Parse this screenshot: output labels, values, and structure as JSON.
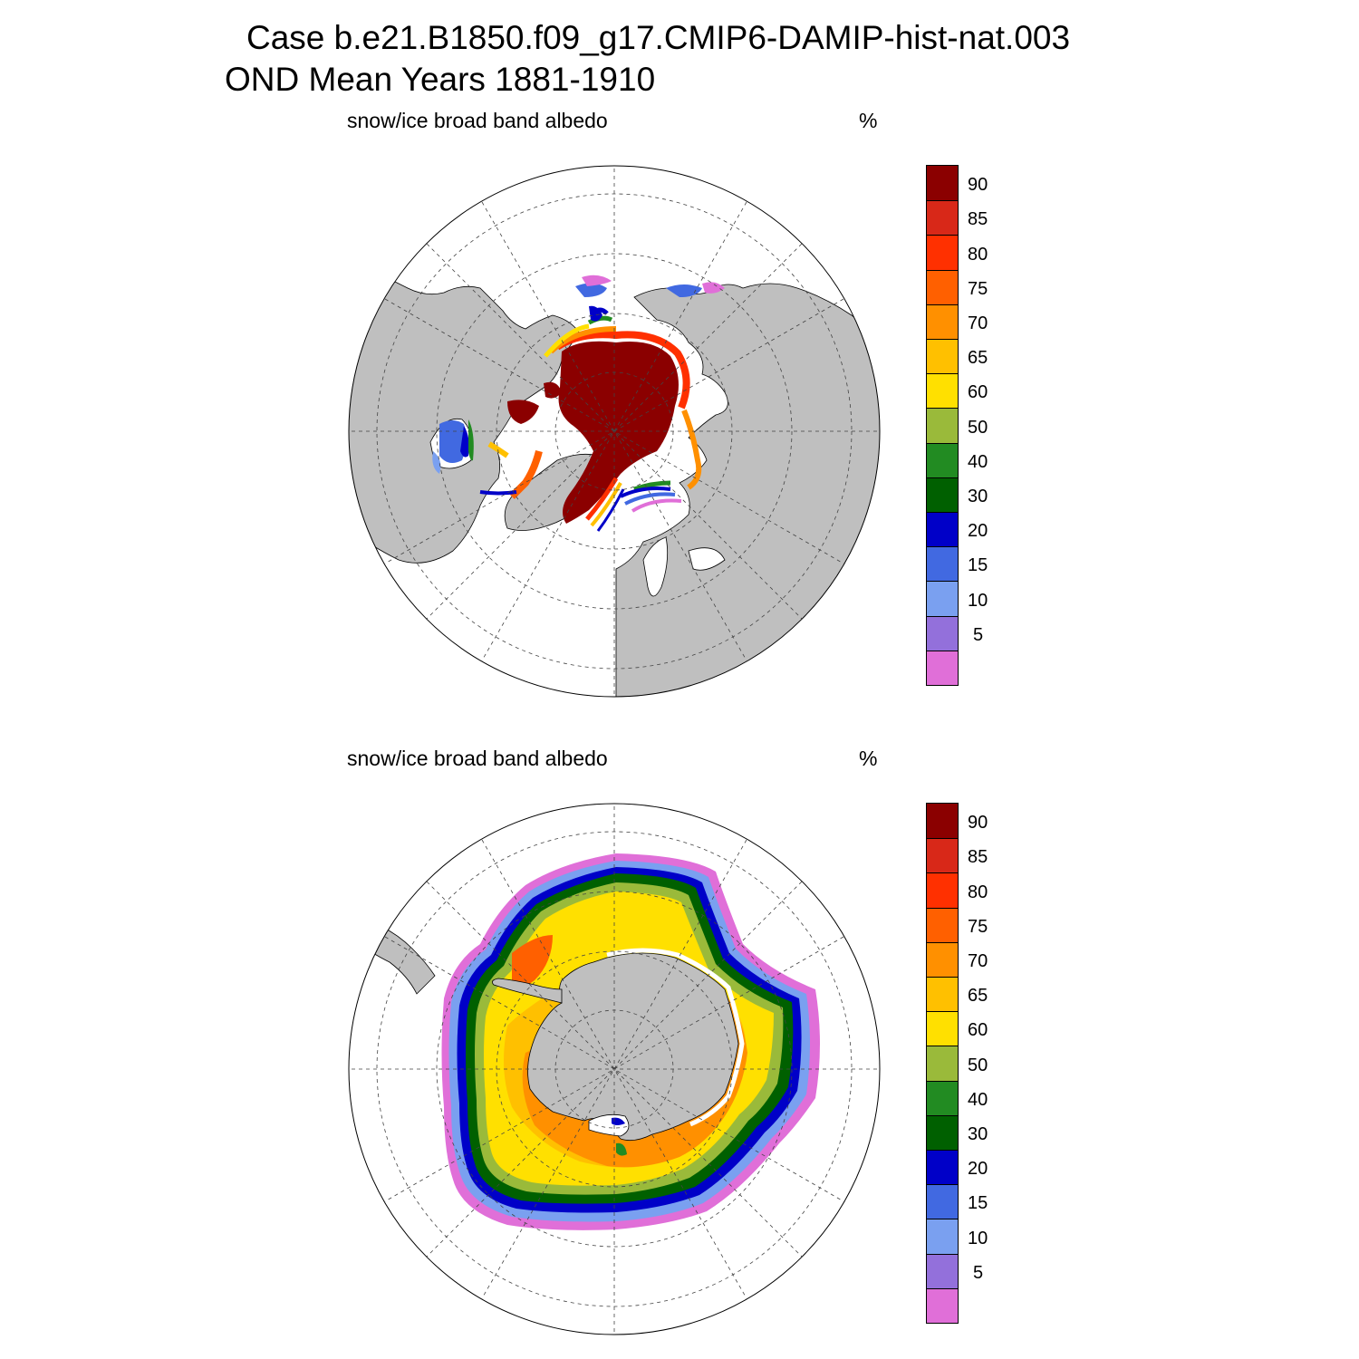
{
  "title": {
    "line1": "Case b.e21.B1850.f09_g17.CMIP6-DAMIP-hist-nat.003",
    "line2": "OND Mean   Years 1881-1910"
  },
  "panels": [
    {
      "id": "north",
      "label": "snow/ice broad band albedo",
      "unit": "%",
      "hemisphere": "Northern"
    },
    {
      "id": "south",
      "label": "snow/ice broad band albedo",
      "unit": "%",
      "hemisphere": "Southern"
    }
  ],
  "colorbar": {
    "levels": [
      "5",
      "10",
      "15",
      "20",
      "30",
      "40",
      "50",
      "60",
      "65",
      "70",
      "75",
      "80",
      "85",
      "90"
    ],
    "colors": [
      "#e06fd8",
      "#9370db",
      "#7aa0f0",
      "#4169e1",
      "#0000c8",
      "#006000",
      "#228b22",
      "#9aba3a",
      "#ffe000",
      "#ffc000",
      "#ff9000",
      "#ff6000",
      "#ff3000",
      "#d82818",
      "#8b0000"
    ]
  },
  "map_colors": {
    "land": "#bfbfbf",
    "background": "#ffffff",
    "grid": "#444444"
  },
  "chart_data": {
    "type": "heatmap",
    "variable": "snow/ice broad band albedo",
    "units": "%",
    "season": "OND",
    "years": "1881-1910",
    "contour_levels": [
      5,
      10,
      15,
      20,
      30,
      40,
      50,
      60,
      65,
      70,
      75,
      80,
      85,
      90
    ],
    "maps": [
      {
        "hemisphere": "Northern",
        "projection": "polar stereographic",
        "max_albedo_bin": ">90 (central Arctic)",
        "ice_edge_bins": "5-40"
      },
      {
        "hemisphere": "Southern",
        "projection": "polar stereographic",
        "max_albedo_bin": "75-90 (coastal Antarctic)",
        "ice_edge_bins": "5-40"
      }
    ]
  }
}
